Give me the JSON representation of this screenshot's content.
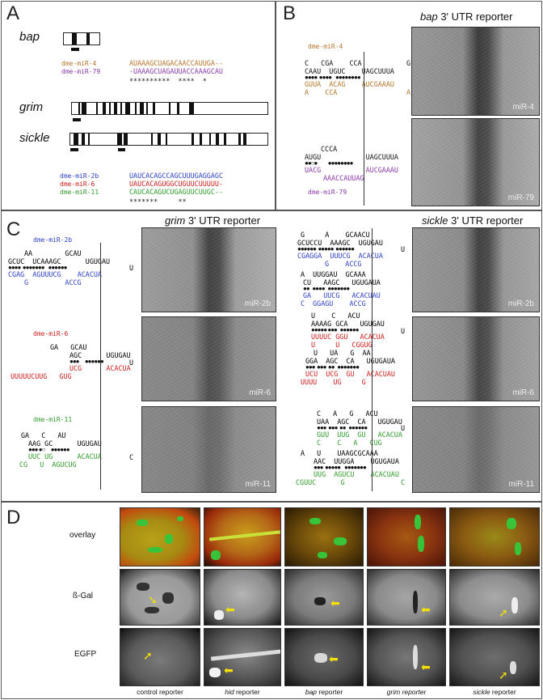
{
  "panels": {
    "A": "A",
    "B": "B",
    "C": "C",
    "D": "D"
  },
  "panelA": {
    "genes": [
      "bap",
      "grim",
      "sickle"
    ],
    "bap_alignment": [
      {
        "name": "dme-miR-4",
        "seq": "AUAAAGCUAGACAACCAUUGA--",
        "color": "#b5742a"
      },
      {
        "name": "dme-miR-79",
        "seq": "-UAAAGCUAGAUUACCAAAGCAU",
        "color": "#8a3aa8"
      }
    ],
    "bap_stars": "**********  ****  *",
    "grim_alignment": [
      {
        "name": "dme-miR-2b",
        "seq": "UAUCACAGCCAGCUUUGAGGAGC",
        "color": "#2b3fc2"
      },
      {
        "name": "dme-miR-6",
        "seq": "UAUCACAGUGGCUGUUCUUUUU-",
        "color": "#c8201e"
      },
      {
        "name": "dme-miR-11",
        "seq": "CAUCACAGUCUGAGUUCUUGC--",
        "color": "#2f9a2a"
      }
    ],
    "grim_stars": "*******     **"
  },
  "panelB": {
    "title_gene": "bap",
    "title_rest": " 3' UTR reporter",
    "mir4": {
      "name": "dme-miR-4",
      "top": "C   CGA    CCA           G",
      "mid": "CAAU  UGUC    UAGCUUUA",
      "bot": "GUUA  ACAG    AUCGAAAU",
      "bot2": "A    CCA                 A",
      "color": "#b5742a"
    },
    "mir79": {
      "name": "dme-miR-79",
      "top": "CCCA",
      "mid": "AUGU           UAGCUUUA",
      "bot": "UACG           AUCGAAAU",
      "bot2": "AAACCAUUAG",
      "color": "#8a3aa8"
    },
    "images": [
      {
        "label": "miR-4"
      },
      {
        "label": "miR-79"
      }
    ]
  },
  "panelC": {
    "grim_title_gene": "grim",
    "sickle_title_gene": "sickle",
    "title_rest": " 3' UTR reporter",
    "grim": [
      {
        "name": "dme-miR-2b",
        "top": "AA        GCAU",
        "mid": "GCUC  UCAAAGC      UGUGAU",
        "bot": "CGAG  AGUUUCG    ACACUA",
        "bot2": "G         ACCG",
        "end": "U",
        "color": "#2b3fc2"
      },
      {
        "name": "dme-miR-6",
        "top": "GA   GCAU",
        "mid": "AGC      UGUGAU",
        "bot": "UCG      ACACUA",
        "bot2": "UUUUUCUUG   GUG",
        "end": "U",
        "color": "#c8201e"
      },
      {
        "name": "dme-miR-11",
        "top": "GA   C   AU",
        "mid": "AAG GC      UGUGAU",
        "bot": "UUC UG      ACACUA",
        "bot2": "CG   U  AGUCUG",
        "end": "C",
        "color": "#2f9a2a"
      }
    ],
    "sickle": [
      {
        "top": "G     A    GCAACU",
        "mid": "GCUCCU  AAAGC  UGUGAU",
        "bot": "CGAGGA  UUUCG  ACACUA",
        "bot2": "G    ACCG",
        "end": "U",
        "color": "#2b3fc2"
      },
      {
        "top": "A  UUGGAU  GCAAA",
        "mid": "CU   AAGC   UGUGAUA",
        "bot": "GA   UUCG   ACACUAU",
        "bot2": "C  GGAGU    ACCG",
        "color": "#2b3fc2"
      },
      {
        "top": "U    C   ACU",
        "mid": "AAAAG GCA   UGUGAU",
        "bot": "UUUUC GGU   ACACUA",
        "bot2": "U     U   CGGUG",
        "end": "U",
        "color": "#c8201e"
      },
      {
        "top": "U   UA   G  AA",
        "mid": "GGA  AGC  CA   UGUGAUA",
        "bot": "UCU  UCG  GU   ACACUAU",
        "bot2": "UUUU    UG     G",
        "color": "#c8201e"
      },
      {
        "top": "C   A   G   ACU",
        "mid": "UAA  AGC  CA   UGUGAU",
        "bot": "GUU  UUG  GU   ACACUA",
        "bot2": "C    C   A   CUG",
        "end": "U",
        "color": "#2f9a2a"
      },
      {
        "top": "A   U    UAAGCGCAAA",
        "mid": "AAC  UUGGA    UGUGAUA",
        "bot": "UUG  AGUCU    ACACUAU",
        "bot2": "CGUUC      G",
        "end": "C",
        "color": "#2f9a2a"
      }
    ],
    "grim_images": [
      {
        "label": "miR-2b"
      },
      {
        "label": "miR-6"
      },
      {
        "label": "miR-11"
      }
    ],
    "sickle_images": [
      {
        "label": "miR-2b"
      },
      {
        "label": "miR-6"
      },
      {
        "label": "miR-11"
      }
    ]
  },
  "panelD": {
    "rows": [
      "overlay",
      "ß-Gal",
      "EGFP"
    ],
    "columns": [
      {
        "gene": "control",
        "rest": " reporter",
        "italic": false
      },
      {
        "gene": "hid",
        "rest": " reporter",
        "italic": true
      },
      {
        "gene": "bap",
        "rest": " reporter",
        "italic": true
      },
      {
        "gene": "grim",
        "rest": " reporter",
        "italic": true
      },
      {
        "gene": "sickle",
        "rest": " reporter",
        "italic": true
      }
    ]
  },
  "colors": {
    "miR4": "#b5742a",
    "miR79": "#8a3aa8",
    "miR2b": "#2b3fc2",
    "miR6": "#c8201e",
    "miR11": "#2f9a2a",
    "arrow": "#f5e000"
  }
}
